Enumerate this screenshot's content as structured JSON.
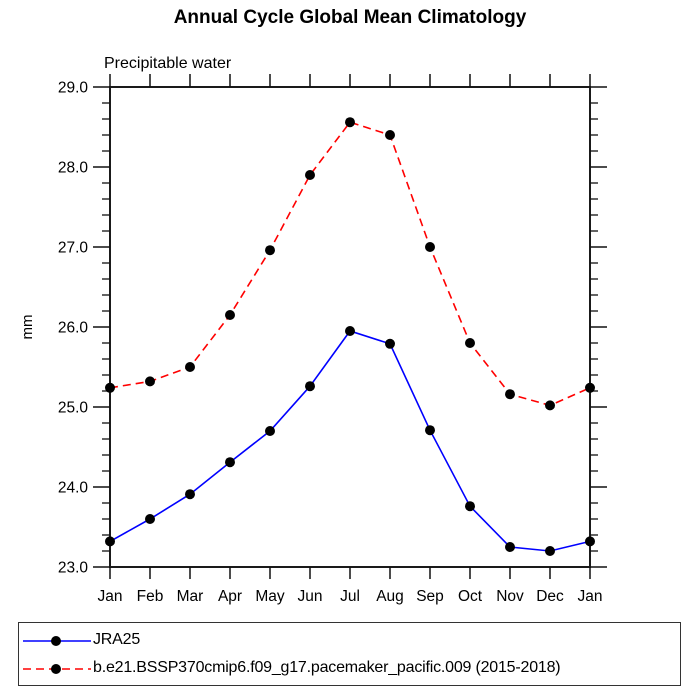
{
  "title": "Annual Cycle Global Mean Climatology",
  "subtitle": "Precipitable water",
  "chart_data": {
    "type": "line",
    "categories": [
      "Jan",
      "Feb",
      "Mar",
      "Apr",
      "May",
      "Jun",
      "Jul",
      "Aug",
      "Sep",
      "Oct",
      "Nov",
      "Dec",
      "Jan"
    ],
    "ylabel": "mm",
    "xlabel": "",
    "ylim": [
      23.0,
      29.0
    ],
    "ytick_labels": [
      "23.0",
      "24.0",
      "25.0",
      "26.0",
      "27.0",
      "28.0",
      "29.0"
    ],
    "ytick_minor_step": 0.2,
    "grid": false,
    "legend_position": "bottom box",
    "marker": {
      "shape": "filled-circle",
      "color": "#000000",
      "radius": 5
    },
    "series": [
      {
        "name": "JRA25",
        "color": "#0000ff",
        "line_style": "solid",
        "values": [
          23.32,
          23.6,
          23.91,
          24.31,
          24.7,
          25.26,
          25.95,
          25.79,
          24.71,
          23.76,
          23.25,
          23.2,
          23.32
        ]
      },
      {
        "name": "b.e21.BSSP370cmip6.f09_g17.pacemaker_pacific.009 (2015-2018)",
        "color": "#ff0000",
        "line_style": "dashed",
        "values": [
          25.24,
          25.32,
          25.5,
          26.15,
          26.96,
          27.9,
          28.56,
          28.4,
          27.0,
          25.8,
          25.16,
          25.02,
          25.24
        ]
      }
    ]
  }
}
